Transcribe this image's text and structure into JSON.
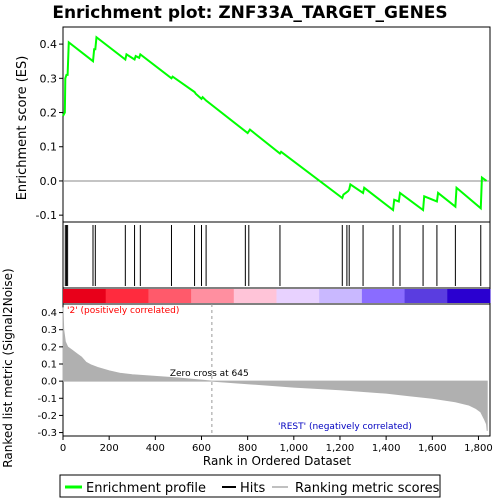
{
  "title": "Enrichment plot: ZNF33A_TARGET_GENES",
  "colors": {
    "es_line": "#00ff00",
    "hits": "#000000",
    "metric_fill": "#b0b0b0",
    "positive_label": "#ff0000",
    "negative_label": "#0000c0",
    "heatmap": [
      "#e8001a",
      "#ff2b3e",
      "#ff5a6b",
      "#ff8fa0",
      "#ffc4d8",
      "#e8d2ff",
      "#c9b8ff",
      "#8a6cff",
      "#5a3de0",
      "#2a00d0"
    ]
  },
  "chart_data": [
    {
      "type": "line",
      "panel": "enrichment",
      "ylabel": "Enrichment score (ES)",
      "xlim": [
        0,
        1850
      ],
      "ylim": [
        -0.12,
        0.45
      ],
      "yticks": [
        "-0.1",
        "0.0",
        "0.1",
        "0.2",
        "0.3",
        "0.4"
      ],
      "ytick_values": [
        -0.1,
        0.0,
        0.1,
        0.2,
        0.3,
        0.4
      ],
      "grid": false,
      "x": [
        0,
        8,
        10,
        15,
        20,
        25,
        130,
        135,
        140,
        145,
        270,
        275,
        310,
        315,
        330,
        335,
        470,
        475,
        570,
        575,
        600,
        605,
        620,
        800,
        805,
        810,
        940,
        945,
        1210,
        1215,
        1225,
        1235,
        1240,
        1245,
        1300,
        1305,
        1430,
        1435,
        1455,
        1460,
        1560,
        1565,
        1620,
        1625,
        1700,
        1705,
        1810,
        1815,
        1835
      ],
      "y": [
        0.19,
        0.2,
        0.3,
        0.31,
        0.31,
        0.405,
        0.35,
        0.385,
        0.385,
        0.42,
        0.355,
        0.37,
        0.355,
        0.365,
        0.36,
        0.37,
        0.3,
        0.305,
        0.26,
        0.255,
        0.24,
        0.245,
        0.235,
        0.14,
        0.145,
        0.15,
        0.08,
        0.085,
        -0.05,
        -0.04,
        -0.035,
        -0.03,
        -0.025,
        -0.01,
        -0.035,
        -0.02,
        -0.085,
        -0.055,
        -0.06,
        -0.035,
        -0.085,
        -0.045,
        -0.06,
        -0.035,
        -0.075,
        -0.02,
        -0.08,
        0.01,
        0.0
      ],
      "hits": [
        10,
        15,
        20,
        130,
        140,
        270,
        310,
        335,
        470,
        570,
        600,
        620,
        790,
        805,
        940,
        1210,
        1230,
        1240,
        1300,
        1430,
        1460,
        1560,
        1620,
        1700,
        1810
      ]
    },
    {
      "type": "area",
      "panel": "ranked-metric",
      "xlabel": "Rank in Ordered Dataset",
      "ylabel": "Ranked list metric (Signal2Noise)",
      "xlim": [
        0,
        1850
      ],
      "ylim": [
        -0.32,
        0.45
      ],
      "xticks": [
        "0",
        "200",
        "400",
        "600",
        "800",
        "1,000",
        "1,200",
        "1,400",
        "1,600",
        "1,800"
      ],
      "xtick_values": [
        0,
        200,
        400,
        600,
        800,
        1000,
        1200,
        1400,
        1600,
        1800
      ],
      "yticks": [
        "-0.3",
        "-0.2",
        "-0.1",
        "0.0",
        "0.1",
        "0.2",
        "0.3",
        "0.4"
      ],
      "ytick_values": [
        -0.3,
        -0.2,
        -0.1,
        0.0,
        0.1,
        0.2,
        0.3,
        0.4
      ],
      "x": [
        0,
        3,
        10,
        20,
        40,
        60,
        80,
        100,
        120,
        150,
        200,
        250,
        300,
        400,
        500,
        645,
        800,
        1000,
        1200,
        1400,
        1500,
        1600,
        1700,
        1760,
        1790,
        1810,
        1825,
        1835,
        1838
      ],
      "y": [
        0.43,
        0.3,
        0.23,
        0.2,
        0.18,
        0.16,
        0.14,
        0.11,
        0.095,
        0.08,
        0.06,
        0.045,
        0.037,
        0.028,
        0.018,
        0.0,
        -0.015,
        -0.035,
        -0.05,
        -0.07,
        -0.085,
        -0.1,
        -0.12,
        -0.14,
        -0.16,
        -0.18,
        -0.22,
        -0.25,
        -0.29
      ],
      "zero_cross_label": "Zero cross at 645",
      "zero_cross_rank": 645,
      "positive_label": "'2' (positively correlated)",
      "negative_label": "'REST' (negatively correlated)"
    }
  ],
  "legend": {
    "items": [
      {
        "label": "Enrichment profile",
        "marker": "green-line"
      },
      {
        "label": "Hits",
        "marker": "black-line"
      },
      {
        "label": "Ranking metric scores",
        "marker": "gray-line"
      }
    ]
  }
}
